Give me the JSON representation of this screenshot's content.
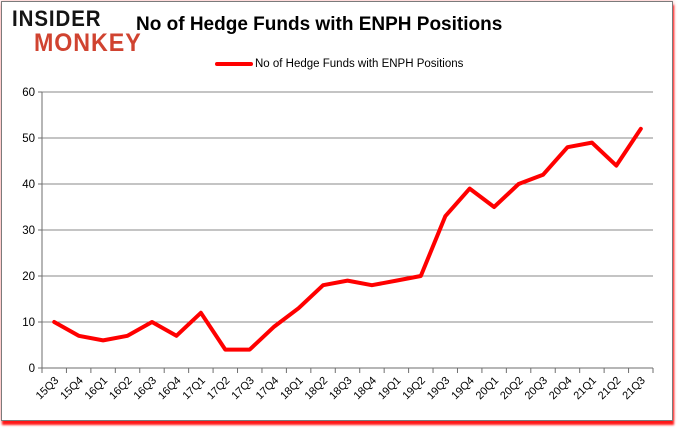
{
  "logo": {
    "line1": "INSIDER",
    "line2": "MONKEY"
  },
  "header": {
    "title": "No of Hedge Funds with ENPH Positions"
  },
  "legend": {
    "label": "No of Hedge Funds with ENPH Positions"
  },
  "colors": {
    "line": "#ff0000",
    "logo_black": "#141414",
    "logo_red": "#d04330",
    "gridline": "#8a8a8a",
    "axis": "#6e6e6e",
    "tick_text": "#000000",
    "background": "#ffffff"
  },
  "chart_data": {
    "type": "line",
    "title": "No of Hedge Funds with ENPH Positions",
    "categories": [
      "15Q3",
      "15Q4",
      "16Q1",
      "16Q2",
      "16Q3",
      "16Q4",
      "17Q1",
      "17Q2",
      "17Q3",
      "17Q4",
      "18Q1",
      "18Q2",
      "18Q3",
      "18Q4",
      "19Q1",
      "19Q2",
      "19Q3",
      "19Q4",
      "20Q1",
      "20Q2",
      "20Q3",
      "20Q4",
      "21Q1",
      "21Q2",
      "21Q3"
    ],
    "series": [
      {
        "name": "No of Hedge Funds with ENPH Positions",
        "values": [
          10,
          7,
          6,
          7,
          10,
          7,
          12,
          4,
          4,
          9,
          13,
          18,
          19,
          18,
          19,
          20,
          33,
          39,
          35,
          40,
          42,
          48,
          49,
          44,
          52
        ]
      }
    ],
    "xlabel": "",
    "ylabel": "",
    "ylim": [
      0,
      60
    ],
    "yticks": [
      0,
      10,
      20,
      30,
      40,
      50,
      60
    ],
    "grid": "horizontal",
    "legend_position": "top"
  }
}
